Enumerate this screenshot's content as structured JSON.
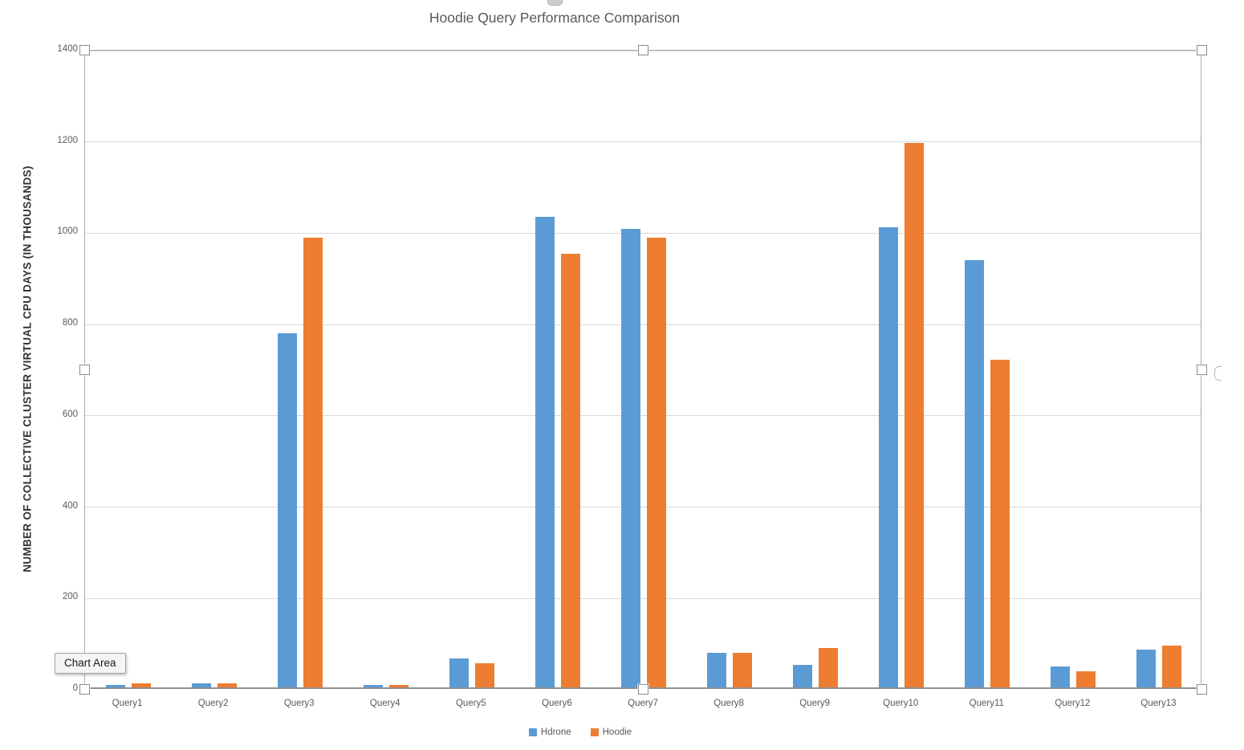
{
  "title": "Hoodie Query Performance Comparison",
  "tooltip": {
    "label": "Chart Area"
  },
  "colors": {
    "series_blue": "#5B9BD5",
    "series_orange": "#ED7D31",
    "gridline": "#D9D9D9",
    "axis_text": "#595959",
    "title_text": "#595959"
  },
  "chart_data": {
    "type": "bar",
    "title": "Hoodie Query Performance Comparison",
    "categories": [
      "Query1",
      "Query2",
      "Query3",
      "Query4",
      "Query5",
      "Query6",
      "Query7",
      "Query8",
      "Query9",
      "Query10",
      "Query11",
      "Query12",
      "Query13"
    ],
    "series": [
      {
        "name": "Hdrone",
        "color": "#5B9BD5",
        "values": [
          5,
          8,
          775,
          5,
          63,
          1030,
          1005,
          76,
          50,
          1008,
          936,
          45,
          82
        ]
      },
      {
        "name": "Hoodie",
        "color": "#ED7D31",
        "values": [
          8,
          8,
          985,
          5,
          52,
          950,
          985,
          75,
          87,
          1193,
          718,
          35,
          92
        ]
      }
    ],
    "xlabel": "",
    "ylabel": "NUMBER OF COLLECTIVE CLUSTER VIRTUAL CPU DAYS (IN THOUSANDS)",
    "ylim": [
      0,
      1400
    ],
    "yticks": [
      0,
      200,
      400,
      600,
      800,
      1000,
      1200,
      1400
    ],
    "grid": true,
    "legend_position": "bottom"
  }
}
